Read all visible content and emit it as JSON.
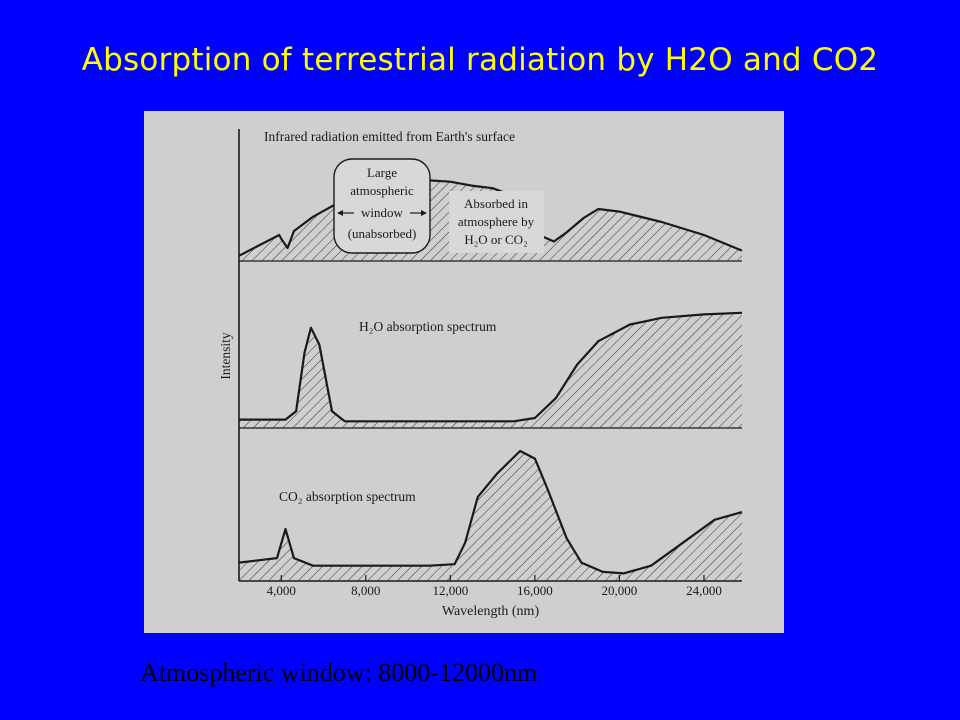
{
  "slide": {
    "title": "Absorption of terrestrial radiation by H2O and CO2",
    "caption": "Atmospheric  window: 8000-12000nm"
  },
  "colors": {
    "background": "#0000FF",
    "title": "#FFFF00",
    "figure_bg": "#CFCFCF",
    "ink": "#1A1A1A"
  },
  "chart_data": [
    {
      "type": "area",
      "title": "Infrared radiation emitted from Earth's surface",
      "annotations": [
        {
          "lines": [
            "Large",
            "atmospheric",
            "window",
            "(unabsorbed)"
          ]
        },
        {
          "lines": [
            "Absorbed in",
            "atmosphere by",
            "H2O or CO2"
          ]
        }
      ],
      "series": [
        {
          "values": [
            [
              2000,
              0.04
            ],
            [
              3900,
              0.2
            ],
            [
              4000,
              0.17
            ],
            [
              4300,
              0.1
            ],
            [
              4600,
              0.23
            ],
            [
              5500,
              0.34
            ],
            [
              6500,
              0.43
            ],
            [
              7500,
              0.51
            ],
            [
              8300,
              0.56
            ],
            [
              9500,
              0.6
            ],
            [
              11000,
              0.62
            ],
            [
              12000,
              0.61
            ],
            [
              13000,
              0.58
            ],
            [
              14000,
              0.56
            ],
            [
              14500,
              0.53
            ],
            [
              15000,
              0.5
            ],
            [
              15500,
              0.42
            ],
            [
              16200,
              0.2
            ],
            [
              16900,
              0.15
            ],
            [
              17500,
              0.22
            ],
            [
              18300,
              0.33
            ],
            [
              19000,
              0.4
            ],
            [
              20000,
              0.38
            ],
            [
              22000,
              0.3
            ],
            [
              24000,
              0.2
            ],
            [
              25800,
              0.08
            ]
          ]
        }
      ]
    },
    {
      "type": "area",
      "title": "H2O absorption spectrum",
      "series": [
        {
          "values": [
            [
              2000,
              0.05
            ],
            [
              4200,
              0.05
            ],
            [
              4700,
              0.1
            ],
            [
              5100,
              0.45
            ],
            [
              5400,
              0.6
            ],
            [
              5800,
              0.5
            ],
            [
              6400,
              0.1
            ],
            [
              7000,
              0.04
            ],
            [
              9000,
              0.04
            ],
            [
              12000,
              0.04
            ],
            [
              15000,
              0.04
            ],
            [
              16000,
              0.06
            ],
            [
              17000,
              0.18
            ],
            [
              18000,
              0.38
            ],
            [
              19000,
              0.52
            ],
            [
              20500,
              0.62
            ],
            [
              22000,
              0.66
            ],
            [
              24000,
              0.68
            ],
            [
              25800,
              0.69
            ]
          ]
        }
      ]
    },
    {
      "type": "area",
      "title": "CO2 absorption spectrum",
      "xlabel": "Wavelength (nm)",
      "ylabel": "Intensity",
      "xlim": [
        2000,
        25800
      ],
      "xticks": [
        4000,
        8000,
        12000,
        16000,
        20000,
        24000
      ],
      "xtick_labels": [
        "4,000",
        "8,000",
        "12,000",
        "16,000",
        "20,000",
        "24,000"
      ],
      "series": [
        {
          "values": [
            [
              2000,
              0.12
            ],
            [
              3800,
              0.15
            ],
            [
              4200,
              0.34
            ],
            [
              4600,
              0.15
            ],
            [
              5500,
              0.1
            ],
            [
              8000,
              0.1
            ],
            [
              11000,
              0.1
            ],
            [
              12200,
              0.11
            ],
            [
              12700,
              0.25
            ],
            [
              13300,
              0.55
            ],
            [
              14200,
              0.7
            ],
            [
              15300,
              0.85
            ],
            [
              16000,
              0.8
            ],
            [
              16600,
              0.6
            ],
            [
              17500,
              0.28
            ],
            [
              18200,
              0.12
            ],
            [
              19200,
              0.06
            ],
            [
              20200,
              0.05
            ],
            [
              21500,
              0.1
            ],
            [
              23000,
              0.25
            ],
            [
              24500,
              0.4
            ],
            [
              25800,
              0.45
            ]
          ]
        }
      ]
    }
  ]
}
